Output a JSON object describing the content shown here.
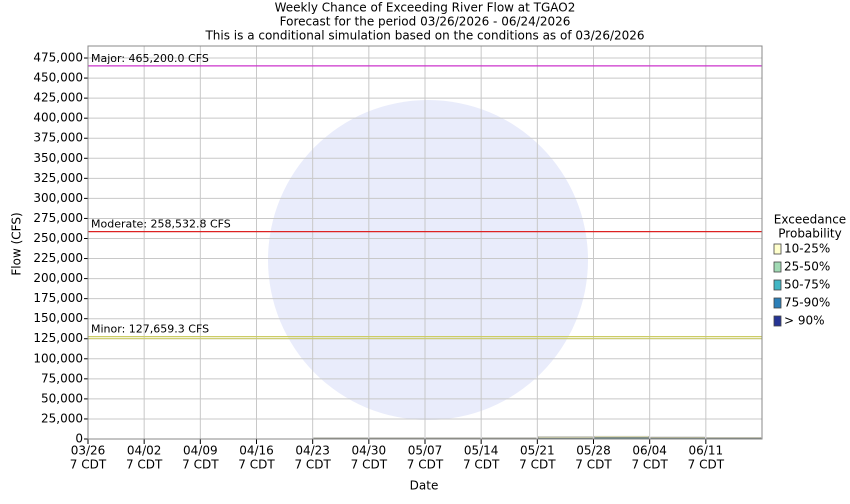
{
  "chart_data": {
    "type": "stacked-bar",
    "title": [
      "Weekly Chance of Exceeding River Flow at TGAO2",
      "Forecast for the period 03/26/2026 - 06/24/2026",
      "This is a conditional simulation based on the conditions as of 03/26/2026"
    ],
    "x_label": "Date",
    "y_label": "Flow (CFS)",
    "xticks": [
      [
        "03/26",
        "7 CDT"
      ],
      [
        "04/02",
        "7 CDT"
      ],
      [
        "04/09",
        "7 CDT"
      ],
      [
        "04/16",
        "7 CDT"
      ],
      [
        "04/23",
        "7 CDT"
      ],
      [
        "04/30",
        "7 CDT"
      ],
      [
        "05/07",
        "7 CDT"
      ],
      [
        "05/14",
        "7 CDT"
      ],
      [
        "05/21",
        "7 CDT"
      ],
      [
        "05/28",
        "7 CDT"
      ],
      [
        "06/04",
        "7 CDT"
      ],
      [
        "06/11",
        "7 CDT"
      ]
    ],
    "ylim": [
      0,
      490000
    ],
    "yticks": [
      0,
      {
        "value": 25000,
        "label": "25,000"
      },
      {
        "value": 50000,
        "label": "50,000"
      },
      {
        "value": 75000,
        "label": "75,000"
      },
      {
        "value": 100000,
        "label": "100,000"
      },
      {
        "value": 125000,
        "label": "125,000"
      },
      {
        "value": 150000,
        "label": "150,000"
      },
      {
        "value": 175000,
        "label": "175,000"
      },
      {
        "value": 200000,
        "label": "200,000"
      },
      {
        "value": 225000,
        "label": "225,000"
      },
      {
        "value": 250000,
        "label": "250,000"
      },
      {
        "value": 275000,
        "label": "275,000"
      },
      {
        "value": 300000,
        "label": "300,000"
      },
      {
        "value": 325000,
        "label": "325,000"
      },
      {
        "value": 350000,
        "label": "350,000"
      },
      {
        "value": 375000,
        "label": "375,000"
      },
      {
        "value": 400000,
        "label": "400,000"
      },
      {
        "value": 425000,
        "label": "425,000"
      },
      {
        "value": 450000,
        "label": "450,000"
      },
      {
        "value": 475000,
        "label": "475,000"
      }
    ],
    "grid": true,
    "thresholds": [
      {
        "label": "Major: 465,200.0 CFS",
        "value": 465200,
        "color": "#cc33cc"
      },
      {
        "label": "Moderate: 258,532.8 CFS",
        "value": 258532.8,
        "color": "#dd2222"
      },
      {
        "label": "Minor: 127,659.3 CFS",
        "value": 127659.3,
        "color": "#cccc66"
      }
    ],
    "legend_title": [
      "Exceedance",
      "Probability"
    ],
    "series": [
      {
        "name": "> 90%",
        "color": "#253494",
        "values": [
          null,
          null,
          null,
          null,
          300,
          300,
          300,
          300,
          400,
          500,
          400,
          300
        ]
      },
      {
        "name": "75-90%",
        "color": "#2c7fb8",
        "values": [
          null,
          null,
          null,
          null,
          200,
          200,
          200,
          200,
          300,
          400,
          300,
          200
        ]
      },
      {
        "name": "50-75%",
        "color": "#41b6c4",
        "values": [
          null,
          null,
          null,
          null,
          200,
          200,
          200,
          200,
          400,
          500,
          400,
          300
        ]
      },
      {
        "name": "25-50%",
        "color": "#a1dab4",
        "values": [
          null,
          null,
          null,
          null,
          300,
          300,
          300,
          300,
          600,
          800,
          500,
          400
        ]
      },
      {
        "name": "10-25%",
        "color": "#ffffcc",
        "values": [
          null,
          null,
          null,
          null,
          500,
          500,
          500,
          500,
          1200,
          1400,
          900,
          700
        ]
      }
    ]
  }
}
